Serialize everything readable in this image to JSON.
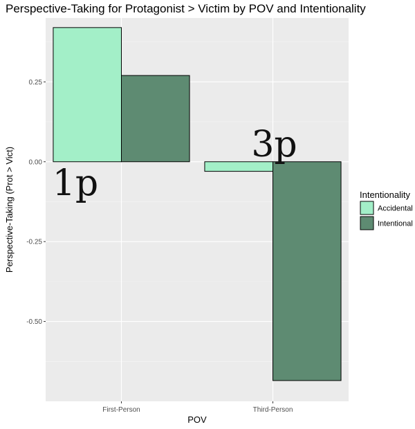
{
  "chart_data": {
    "type": "bar",
    "title": "Perspective-Taking for Protagonist > Victim by POV and Intentionality",
    "xlabel": "POV",
    "ylabel": "Perspective-Taking (Prot > Vict)",
    "categories": [
      "First-Person",
      "Third-Person"
    ],
    "series": [
      {
        "name": "Accidental",
        "color": "#a3efc8",
        "values": [
          0.42,
          -0.03
        ]
      },
      {
        "name": "Intentional",
        "color": "#5e8b72",
        "values": [
          0.27,
          -0.685
        ]
      }
    ],
    "yticks": [
      0.25,
      0.0,
      -0.25,
      -0.5
    ],
    "ytick_labels": [
      "0.25",
      "0.00",
      "-0.25",
      "-0.50"
    ],
    "ylim": [
      -0.75,
      0.45
    ],
    "grid": true,
    "legend": {
      "title": "Intentionality",
      "position": "right"
    },
    "annotations": [
      {
        "text": "1p",
        "category": "First-Person"
      },
      {
        "text": "3p",
        "category": "Third-Person"
      }
    ]
  }
}
